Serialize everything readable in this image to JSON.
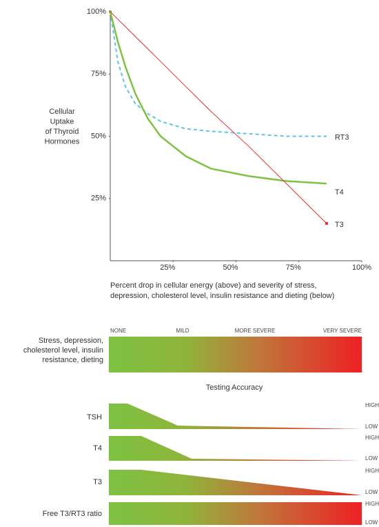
{
  "chart_data": {
    "type": "line",
    "ylabel": [
      "Cellular",
      "Uptake",
      "of Thyroid",
      "Hormones"
    ],
    "xlabel": [
      "Percent drop in cellular energy (above) and severity of stress,",
      "depression, cholesterol level, insulin resistance and dieting (below)"
    ],
    "x": [
      0,
      3,
      6,
      10,
      15,
      20,
      30,
      40,
      55,
      70,
      86
    ],
    "series": [
      {
        "name": "RT3",
        "color": "#5cc3ea",
        "dashed": true,
        "values": [
          100,
          80,
          70,
          63,
          59,
          56,
          53,
          52,
          51,
          50,
          50
        ]
      },
      {
        "name": "T4",
        "color": "#7dc242",
        "dashed": false,
        "values": [
          100,
          88,
          78,
          67,
          57,
          50,
          42,
          37,
          34,
          32,
          31
        ]
      },
      {
        "name": "T3",
        "color": "#e8312f",
        "dashed": false,
        "values": [
          100,
          97,
          94,
          90,
          85,
          80,
          70,
          60,
          46,
          31,
          15
        ]
      }
    ],
    "xlim": [
      0,
      100
    ],
    "ylim": [
      0,
      100
    ],
    "xticks": [
      {
        "value": 25,
        "label": "25%"
      },
      {
        "value": 50,
        "label": "50%"
      },
      {
        "value": 75,
        "label": "75%"
      },
      {
        "value": 100,
        "label": "100%"
      }
    ],
    "yticks": [
      {
        "value": 25,
        "label": "25%"
      },
      {
        "value": 50,
        "label": "50%"
      },
      {
        "value": 75,
        "label": "75%"
      },
      {
        "value": 100,
        "label": "100%"
      }
    ],
    "grid": false
  },
  "severity_panel": {
    "label": [
      "Stress, depression,",
      "cholesterol level, insulin",
      "resistance, dieting"
    ],
    "levels": [
      "NONE",
      "MILD",
      "MORE SEVERE",
      "VERY SEVERE"
    ]
  },
  "accuracy_panel": {
    "title": "Testing Accuracy",
    "rows": [
      {
        "label": "TSH",
        "high": "HIGH",
        "low": "LOW"
      },
      {
        "label": "T4",
        "high": "HIGH",
        "low": "LOW"
      },
      {
        "label": "T3",
        "high": "HIGH",
        "low": "LOW"
      },
      {
        "label": "Free T3/RT3 ratio",
        "high": "HIGH",
        "low": "LOW"
      }
    ]
  }
}
